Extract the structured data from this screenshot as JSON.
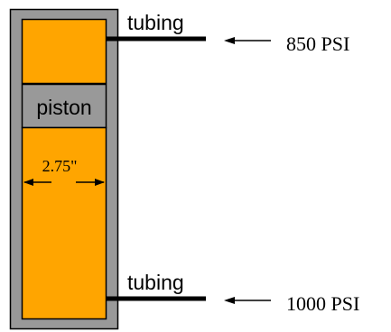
{
  "diagram": {
    "piston_label": "piston",
    "bore_dimension": "2.75\"",
    "ports": [
      {
        "tubing_label": "tubing",
        "pressure_label": "850 PSI"
      },
      {
        "tubing_label": "tubing",
        "pressure_label": "1000 PSI"
      }
    ]
  },
  "colors": {
    "cylinder_wall": "#999999",
    "fluid": "#FFA500",
    "piston": "#999999",
    "outline": "#000000"
  }
}
